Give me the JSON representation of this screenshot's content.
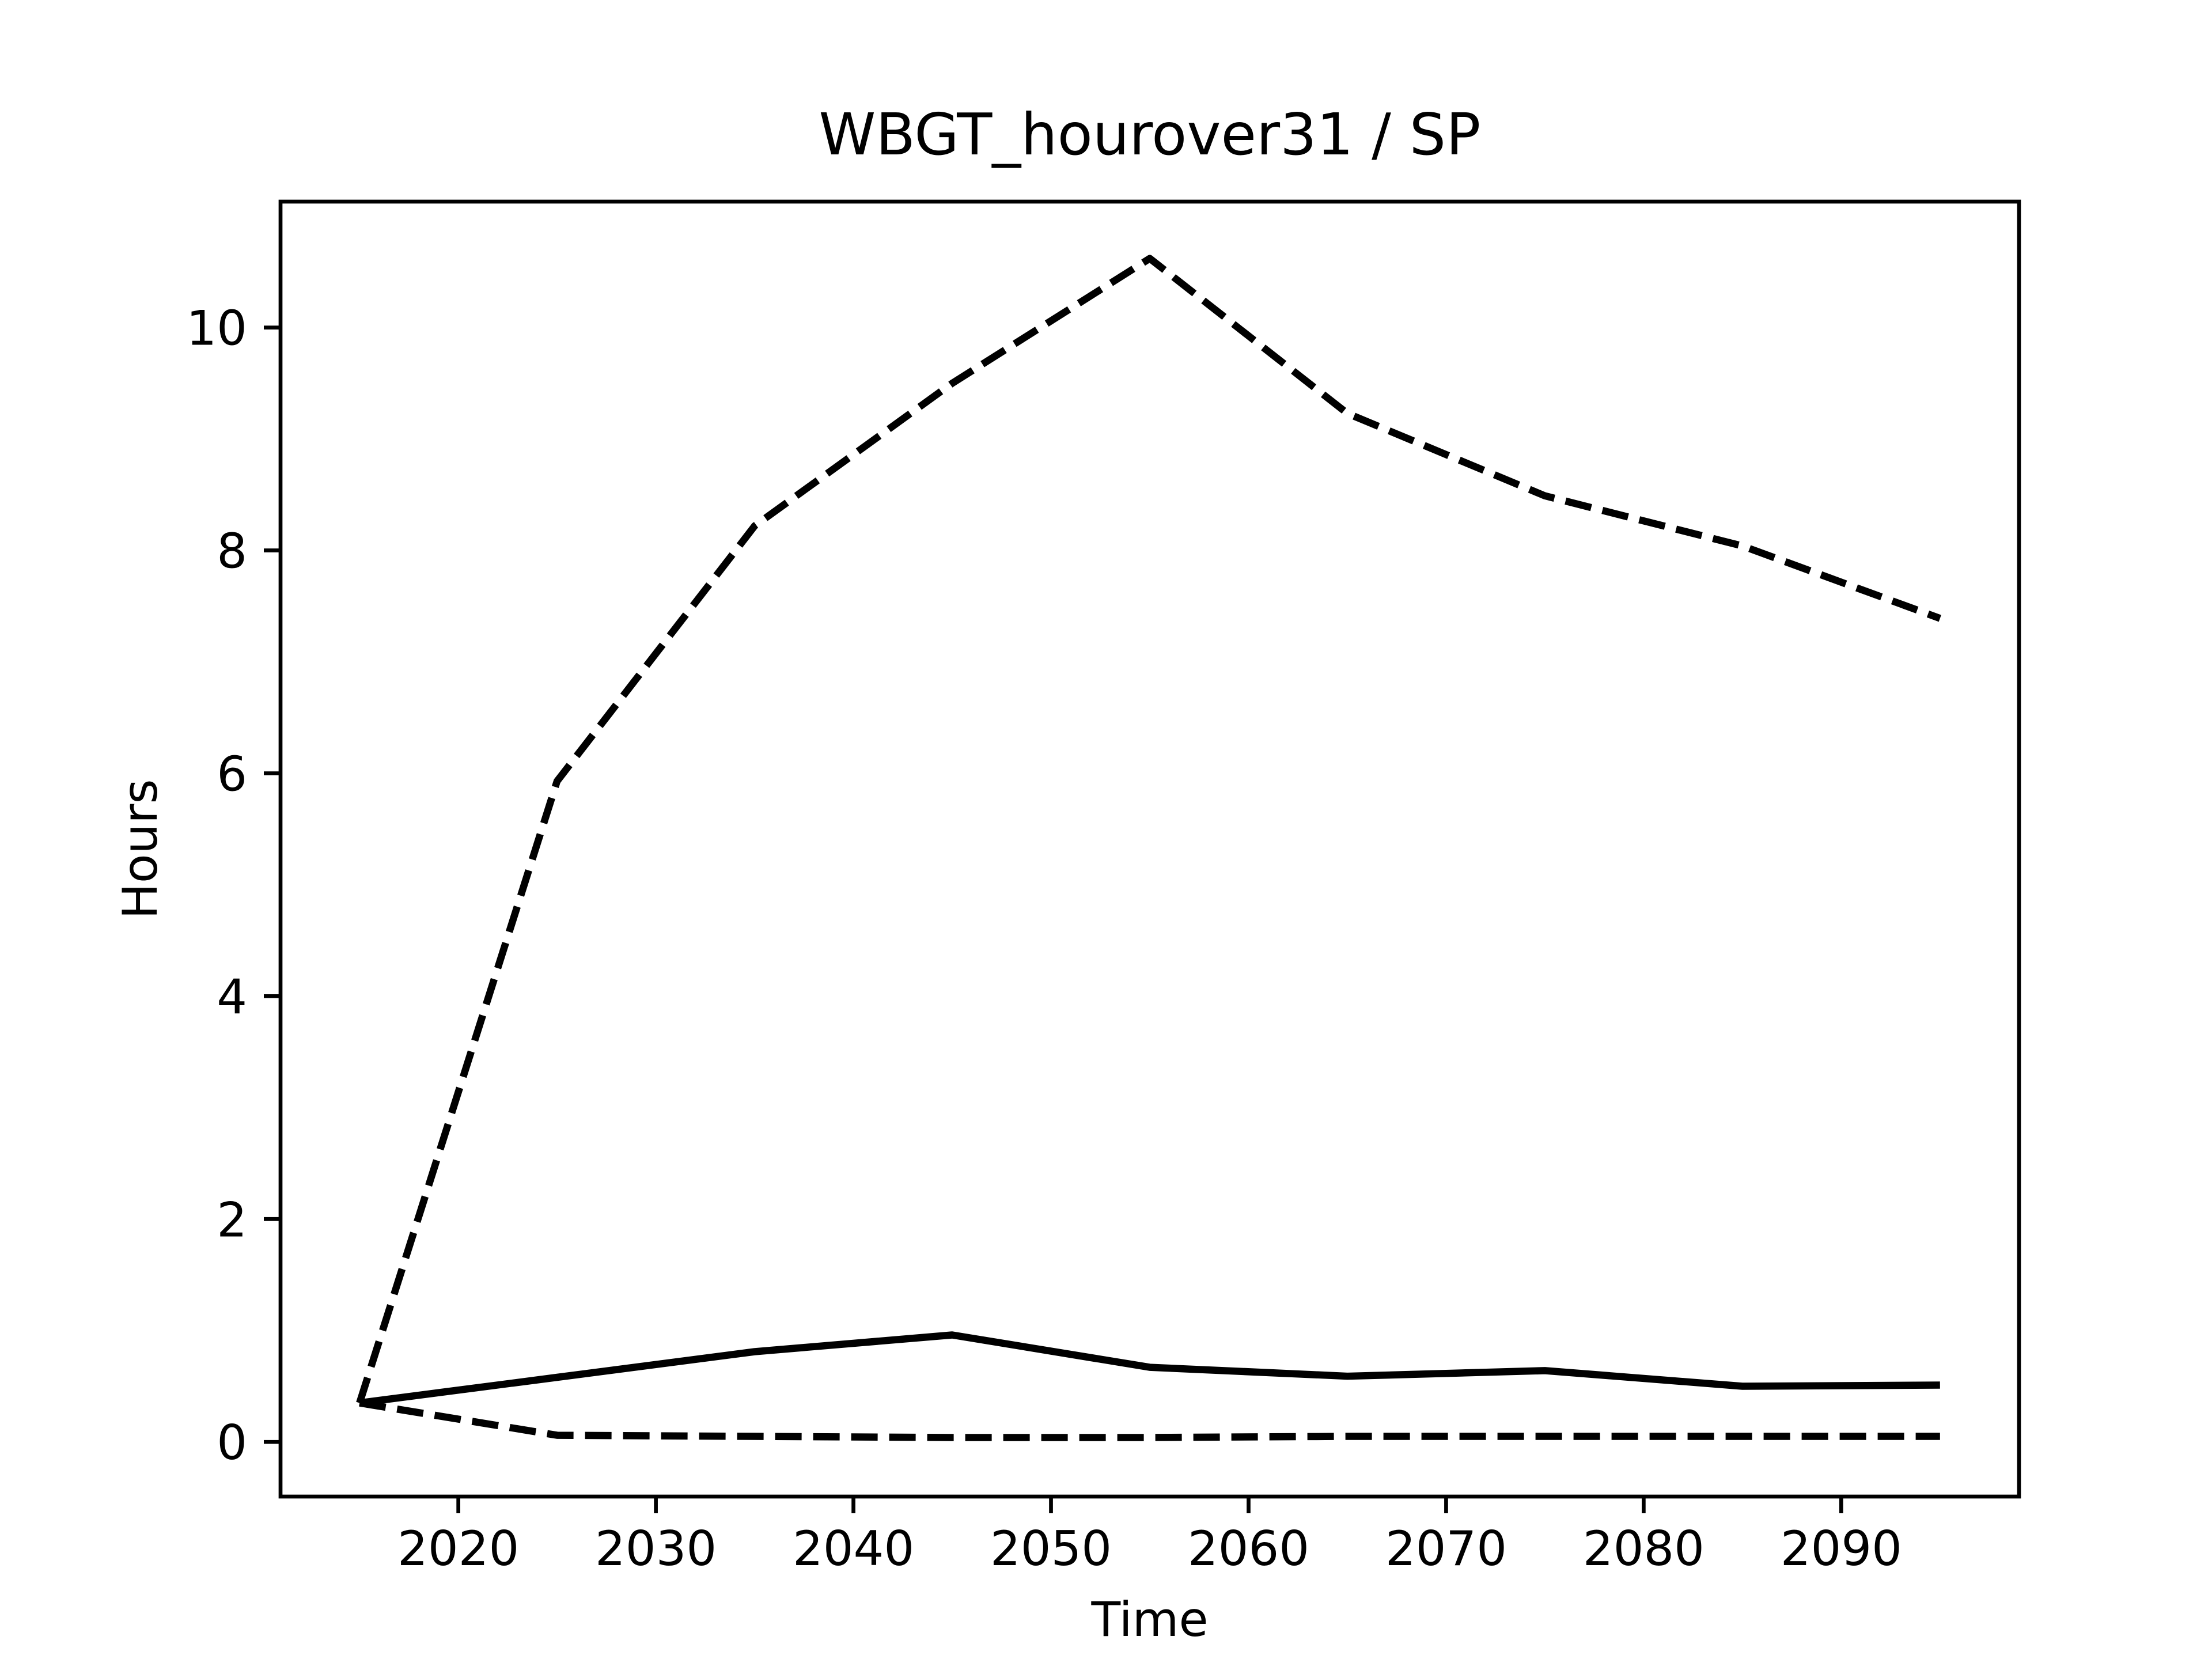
{
  "chart_data": {
    "type": "line",
    "title": "WBGT_hourover31 / SP",
    "xlabel": "Time",
    "ylabel": "Hours",
    "x": [
      2015,
      2025,
      2035,
      2045,
      2055,
      2065,
      2075,
      2085,
      2095
    ],
    "series": [
      {
        "color": "#000000",
        "dash": true,
        "values": [
          0.35,
          5.93,
          8.22,
          9.5,
          10.62,
          9.23,
          8.49,
          8.04,
          7.39
        ]
      },
      {
        "color": "#000000",
        "dash": false,
        "values": [
          0.35,
          0.58,
          0.81,
          0.96,
          0.67,
          0.59,
          0.64,
          0.5,
          0.51
        ]
      },
      {
        "color": "#000000",
        "dash": true,
        "values": [
          0.35,
          0.06,
          0.05,
          0.04,
          0.04,
          0.05,
          0.05,
          0.05,
          0.05
        ]
      }
    ],
    "xlim": [
      2011,
      2099
    ],
    "xticks": [
      2020,
      2030,
      2040,
      2050,
      2060,
      2070,
      2080,
      2090
    ],
    "ylim": [
      -0.49,
      11.13
    ],
    "yticks": [
      0,
      2,
      4,
      6,
      8,
      10
    ]
  }
}
